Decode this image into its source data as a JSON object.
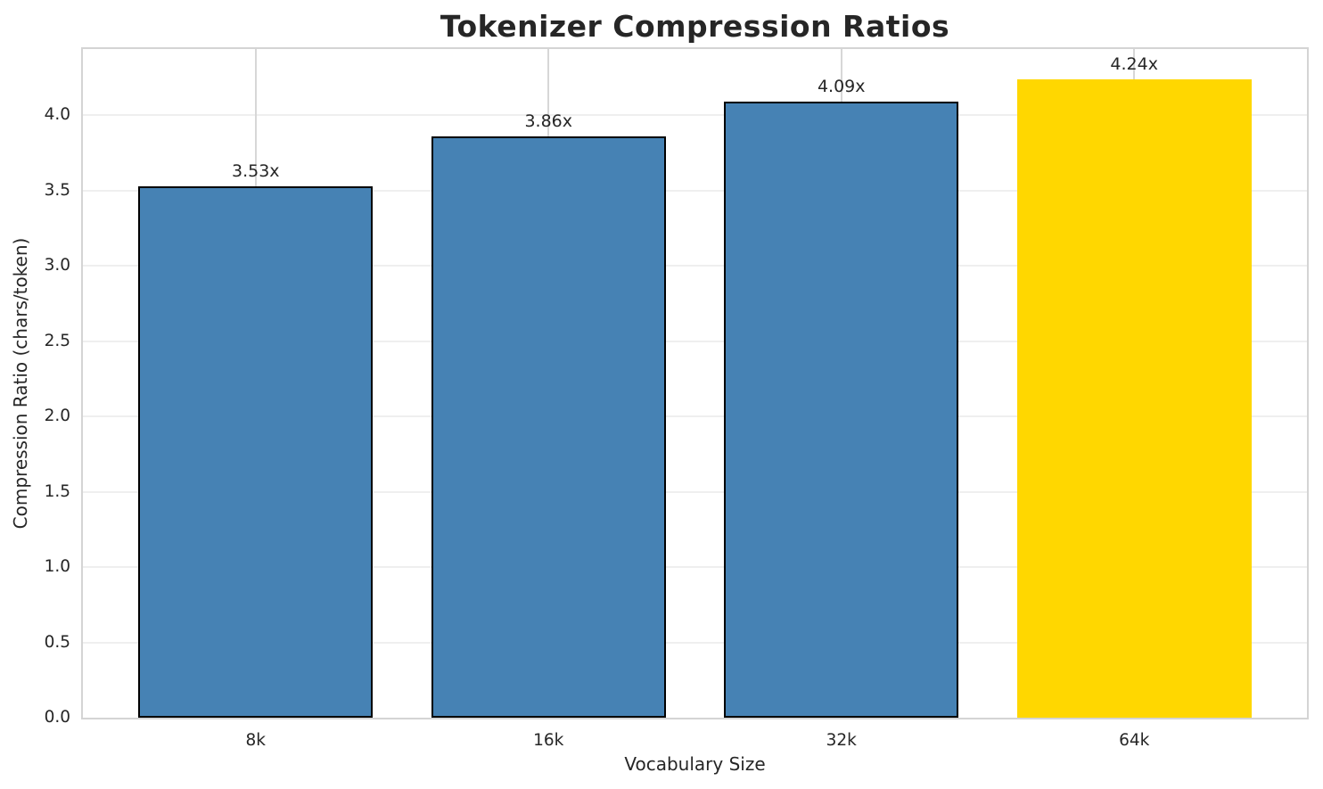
{
  "title": "Tokenizer Compression Ratios",
  "chart_data": {
    "type": "bar",
    "title": "Tokenizer Compression Ratios",
    "xlabel": "Vocabulary Size",
    "ylabel": "Compression Ratio (chars/token)",
    "categories": [
      "8k",
      "16k",
      "32k",
      "64k"
    ],
    "values": [
      3.53,
      3.86,
      4.09,
      4.24
    ],
    "value_labels": [
      "3.53x",
      "3.86x",
      "4.09x",
      "4.24x"
    ],
    "bar_colors": [
      "#4682B4",
      "#4682B4",
      "#4682B4",
      "#FFD700"
    ],
    "bar_edge_colors": [
      "#000000",
      "#000000",
      "#000000",
      "none"
    ],
    "ylim": [
      0,
      4.44
    ],
    "yticks": [
      0.0,
      0.5,
      1.0,
      1.5,
      2.0,
      2.5,
      3.0,
      3.5,
      4.0
    ],
    "ytick_labels": [
      "0.0",
      "0.5",
      "1.0",
      "1.5",
      "2.0",
      "2.5",
      "3.0",
      "3.5",
      "4.0"
    ],
    "bar_rel_width": 0.8,
    "x_margin": 0.19,
    "grid": "both",
    "legend_position": "none",
    "colors": {
      "title_text": "#262626",
      "tick_text": "#262626",
      "hgrid": "#efefef",
      "vgrid": "#d7d7d7",
      "plot_border": "#d4d4d4",
      "background": "#ffffff",
      "highlight_bar": "#FFD700",
      "default_bar": "#4682B4"
    }
  }
}
